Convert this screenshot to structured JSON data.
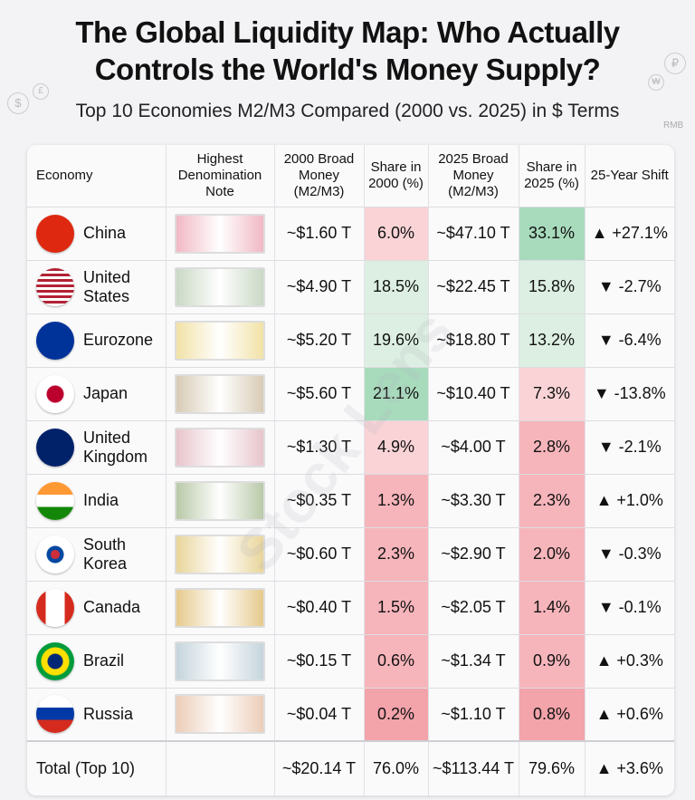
{
  "title_line1": "The Global Liquidity Map: Who Actually",
  "title_line2": "Controls the World's Money Supply?",
  "subtitle": "Top 10 Economies M2/M3 Compared (2000 vs. 2025) in $ Terms",
  "headers": [
    "Economy",
    "Highest Denomination Note",
    "2000 Broad Money (M2/M3)",
    "Share in 2000 (%)",
    "2025 Broad Money (M2/M3)",
    "Share in 2025 (%)",
    "25-Year Shift"
  ],
  "rows": [
    {
      "economy": "China",
      "m2000": "~$1.60 T",
      "s2000": "6.0%",
      "m2025": "~$47.10 T",
      "s2025": "33.1%",
      "shift": "▲ +27.1%"
    },
    {
      "economy": "United States",
      "m2000": "~$4.90 T",
      "s2000": "18.5%",
      "m2025": "~$22.45 T",
      "s2025": "15.8%",
      "shift": "▼ -2.7%"
    },
    {
      "economy": "Eurozone",
      "m2000": "~$5.20 T",
      "s2000": "19.6%",
      "m2025": "~$18.80 T",
      "s2025": "13.2%",
      "shift": "▼ -6.4%"
    },
    {
      "economy": "Japan",
      "m2000": "~$5.60 T",
      "s2000": "21.1%",
      "m2025": "~$10.40 T",
      "s2025": "7.3%",
      "shift": "▼ -13.8%"
    },
    {
      "economy": "United Kingdom",
      "m2000": "~$1.30 T",
      "s2000": "4.9%",
      "m2025": "~$4.00 T",
      "s2025": "2.8%",
      "shift": "▼ -2.1%"
    },
    {
      "economy": "India",
      "m2000": "~$0.35 T",
      "s2000": "1.3%",
      "m2025": "~$3.30 T",
      "s2025": "2.3%",
      "shift": "▲ +1.0%"
    },
    {
      "economy": "South Korea",
      "m2000": "~$0.60 T",
      "s2000": "2.3%",
      "m2025": "~$2.90 T",
      "s2025": "2.0%",
      "shift": "▼ -0.3%"
    },
    {
      "economy": "Canada",
      "m2000": "~$0.40 T",
      "s2000": "1.5%",
      "m2025": "~$2.05 T",
      "s2025": "1.4%",
      "shift": "▼ -0.1%"
    },
    {
      "economy": "Brazil",
      "m2000": "~$0.15 T",
      "s2000": "0.6%",
      "m2025": "~$1.34 T",
      "s2025": "0.9%",
      "shift": "▲ +0.3%"
    },
    {
      "economy": "Russia",
      "m2000": "~$0.04 T",
      "s2000": "0.2%",
      "m2025": "~$1.10 T",
      "s2025": "0.8%",
      "shift": "▲ +0.6%"
    }
  ],
  "total": {
    "economy": "Total (Top 10)",
    "m2000": "~$20.14 T",
    "s2000": "76.0%",
    "m2025": "~$113.44 T",
    "s2025": "79.6%",
    "shift": "▲ +3.6%"
  },
  "watermark": "Stock Lens",
  "deco_symbols": [
    "$",
    "£",
    "₽",
    "₩",
    "RMB"
  ]
}
